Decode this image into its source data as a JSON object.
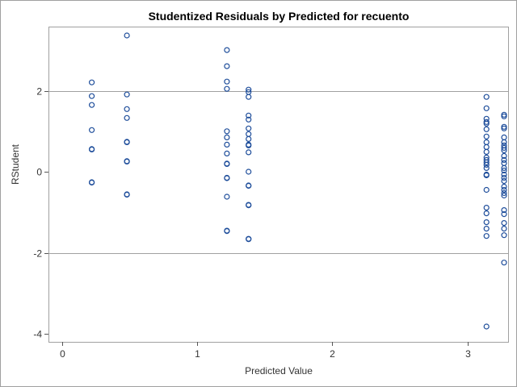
{
  "chart_data": {
    "type": "scatter",
    "title": "Studentized Residuals by Predicted for recuento",
    "xlabel": "Predicted Value",
    "ylabel": "RStudent",
    "xlim": [
      -0.1,
      3.3
    ],
    "ylim": [
      -4.2,
      3.6
    ],
    "xticks": [
      0,
      1,
      2,
      3
    ],
    "yticks": [
      -4,
      -2,
      0,
      2
    ],
    "reference_lines_y": [
      -2,
      2
    ],
    "grid": false,
    "marker_color": "#1f4e9b",
    "frame_color": "#a0a0a0",
    "points": [
      {
        "x": 0.22,
        "y": 2.22
      },
      {
        "x": 0.22,
        "y": 1.88
      },
      {
        "x": 0.22,
        "y": 1.66
      },
      {
        "x": 0.22,
        "y": 1.04
      },
      {
        "x": 0.22,
        "y": 0.56
      },
      {
        "x": 0.22,
        "y": 0.57
      },
      {
        "x": 0.22,
        "y": -0.25
      },
      {
        "x": 0.22,
        "y": -0.26
      },
      {
        "x": 0.48,
        "y": 3.38
      },
      {
        "x": 0.48,
        "y": 1.92
      },
      {
        "x": 0.48,
        "y": 1.56
      },
      {
        "x": 0.48,
        "y": 1.34
      },
      {
        "x": 0.48,
        "y": 0.75
      },
      {
        "x": 0.48,
        "y": 0.74
      },
      {
        "x": 0.48,
        "y": 0.27
      },
      {
        "x": 0.48,
        "y": 0.26
      },
      {
        "x": 0.48,
        "y": -0.55
      },
      {
        "x": 0.48,
        "y": -0.56
      },
      {
        "x": 1.22,
        "y": 3.02
      },
      {
        "x": 1.22,
        "y": 2.62
      },
      {
        "x": 1.22,
        "y": 2.24
      },
      {
        "x": 1.22,
        "y": 2.06
      },
      {
        "x": 1.22,
        "y": 1.01
      },
      {
        "x": 1.22,
        "y": 0.86
      },
      {
        "x": 1.22,
        "y": 0.68
      },
      {
        "x": 1.22,
        "y": 0.46
      },
      {
        "x": 1.22,
        "y": 0.21
      },
      {
        "x": 1.22,
        "y": 0.2
      },
      {
        "x": 1.22,
        "y": -0.14
      },
      {
        "x": 1.22,
        "y": -0.15
      },
      {
        "x": 1.22,
        "y": -0.61
      },
      {
        "x": 1.22,
        "y": -1.45
      },
      {
        "x": 1.22,
        "y": -1.46
      },
      {
        "x": 1.38,
        "y": 2.04
      },
      {
        "x": 1.38,
        "y": 1.98
      },
      {
        "x": 1.38,
        "y": 1.86
      },
      {
        "x": 1.38,
        "y": 1.4
      },
      {
        "x": 1.38,
        "y": 1.3
      },
      {
        "x": 1.38,
        "y": 1.08
      },
      {
        "x": 1.38,
        "y": 0.94
      },
      {
        "x": 1.38,
        "y": 0.82
      },
      {
        "x": 1.38,
        "y": 0.68
      },
      {
        "x": 1.38,
        "y": 0.66
      },
      {
        "x": 1.38,
        "y": 0.49
      },
      {
        "x": 1.38,
        "y": 0.01
      },
      {
        "x": 1.38,
        "y": -0.33
      },
      {
        "x": 1.38,
        "y": -0.34
      },
      {
        "x": 1.38,
        "y": -0.81
      },
      {
        "x": 1.38,
        "y": -0.82
      },
      {
        "x": 1.38,
        "y": -1.65
      },
      {
        "x": 1.38,
        "y": -1.66
      },
      {
        "x": 3.14,
        "y": 1.86
      },
      {
        "x": 3.14,
        "y": 1.58
      },
      {
        "x": 3.14,
        "y": 1.32
      },
      {
        "x": 3.14,
        "y": 1.24
      },
      {
        "x": 3.14,
        "y": 1.2
      },
      {
        "x": 3.14,
        "y": 1.06
      },
      {
        "x": 3.14,
        "y": 0.88
      },
      {
        "x": 3.14,
        "y": 0.74
      },
      {
        "x": 3.14,
        "y": 0.62
      },
      {
        "x": 3.14,
        "y": 0.5
      },
      {
        "x": 3.14,
        "y": 0.36
      },
      {
        "x": 3.14,
        "y": 0.3
      },
      {
        "x": 3.14,
        "y": 0.24
      },
      {
        "x": 3.14,
        "y": 0.18
      },
      {
        "x": 3.14,
        "y": 0.1
      },
      {
        "x": 3.14,
        "y": -0.06
      },
      {
        "x": 3.14,
        "y": -0.08
      },
      {
        "x": 3.14,
        "y": -0.44
      },
      {
        "x": 3.14,
        "y": -0.88
      },
      {
        "x": 3.14,
        "y": -1.02
      },
      {
        "x": 3.14,
        "y": -1.24
      },
      {
        "x": 3.14,
        "y": -1.4
      },
      {
        "x": 3.14,
        "y": -1.58
      },
      {
        "x": 3.14,
        "y": -3.82
      },
      {
        "x": 3.27,
        "y": 1.42
      },
      {
        "x": 3.27,
        "y": 1.38
      },
      {
        "x": 3.27,
        "y": 1.12
      },
      {
        "x": 3.27,
        "y": 1.08
      },
      {
        "x": 3.27,
        "y": 0.86
      },
      {
        "x": 3.27,
        "y": 0.74
      },
      {
        "x": 3.27,
        "y": 0.66
      },
      {
        "x": 3.27,
        "y": 0.6
      },
      {
        "x": 3.27,
        "y": 0.54
      },
      {
        "x": 3.27,
        "y": 0.4
      },
      {
        "x": 3.27,
        "y": 0.3
      },
      {
        "x": 3.27,
        "y": 0.22
      },
      {
        "x": 3.27,
        "y": 0.1
      },
      {
        "x": 3.27,
        "y": 0.04
      },
      {
        "x": 3.27,
        "y": -0.06
      },
      {
        "x": 3.27,
        "y": -0.14
      },
      {
        "x": 3.27,
        "y": -0.22
      },
      {
        "x": 3.27,
        "y": -0.36
      },
      {
        "x": 3.27,
        "y": -0.44
      },
      {
        "x": 3.27,
        "y": -0.52
      },
      {
        "x": 3.27,
        "y": -0.58
      },
      {
        "x": 3.27,
        "y": -0.94
      },
      {
        "x": 3.27,
        "y": -1.04
      },
      {
        "x": 3.27,
        "y": -1.26
      },
      {
        "x": 3.27,
        "y": -1.4
      },
      {
        "x": 3.27,
        "y": -1.56
      },
      {
        "x": 3.27,
        "y": -2.24
      }
    ]
  }
}
